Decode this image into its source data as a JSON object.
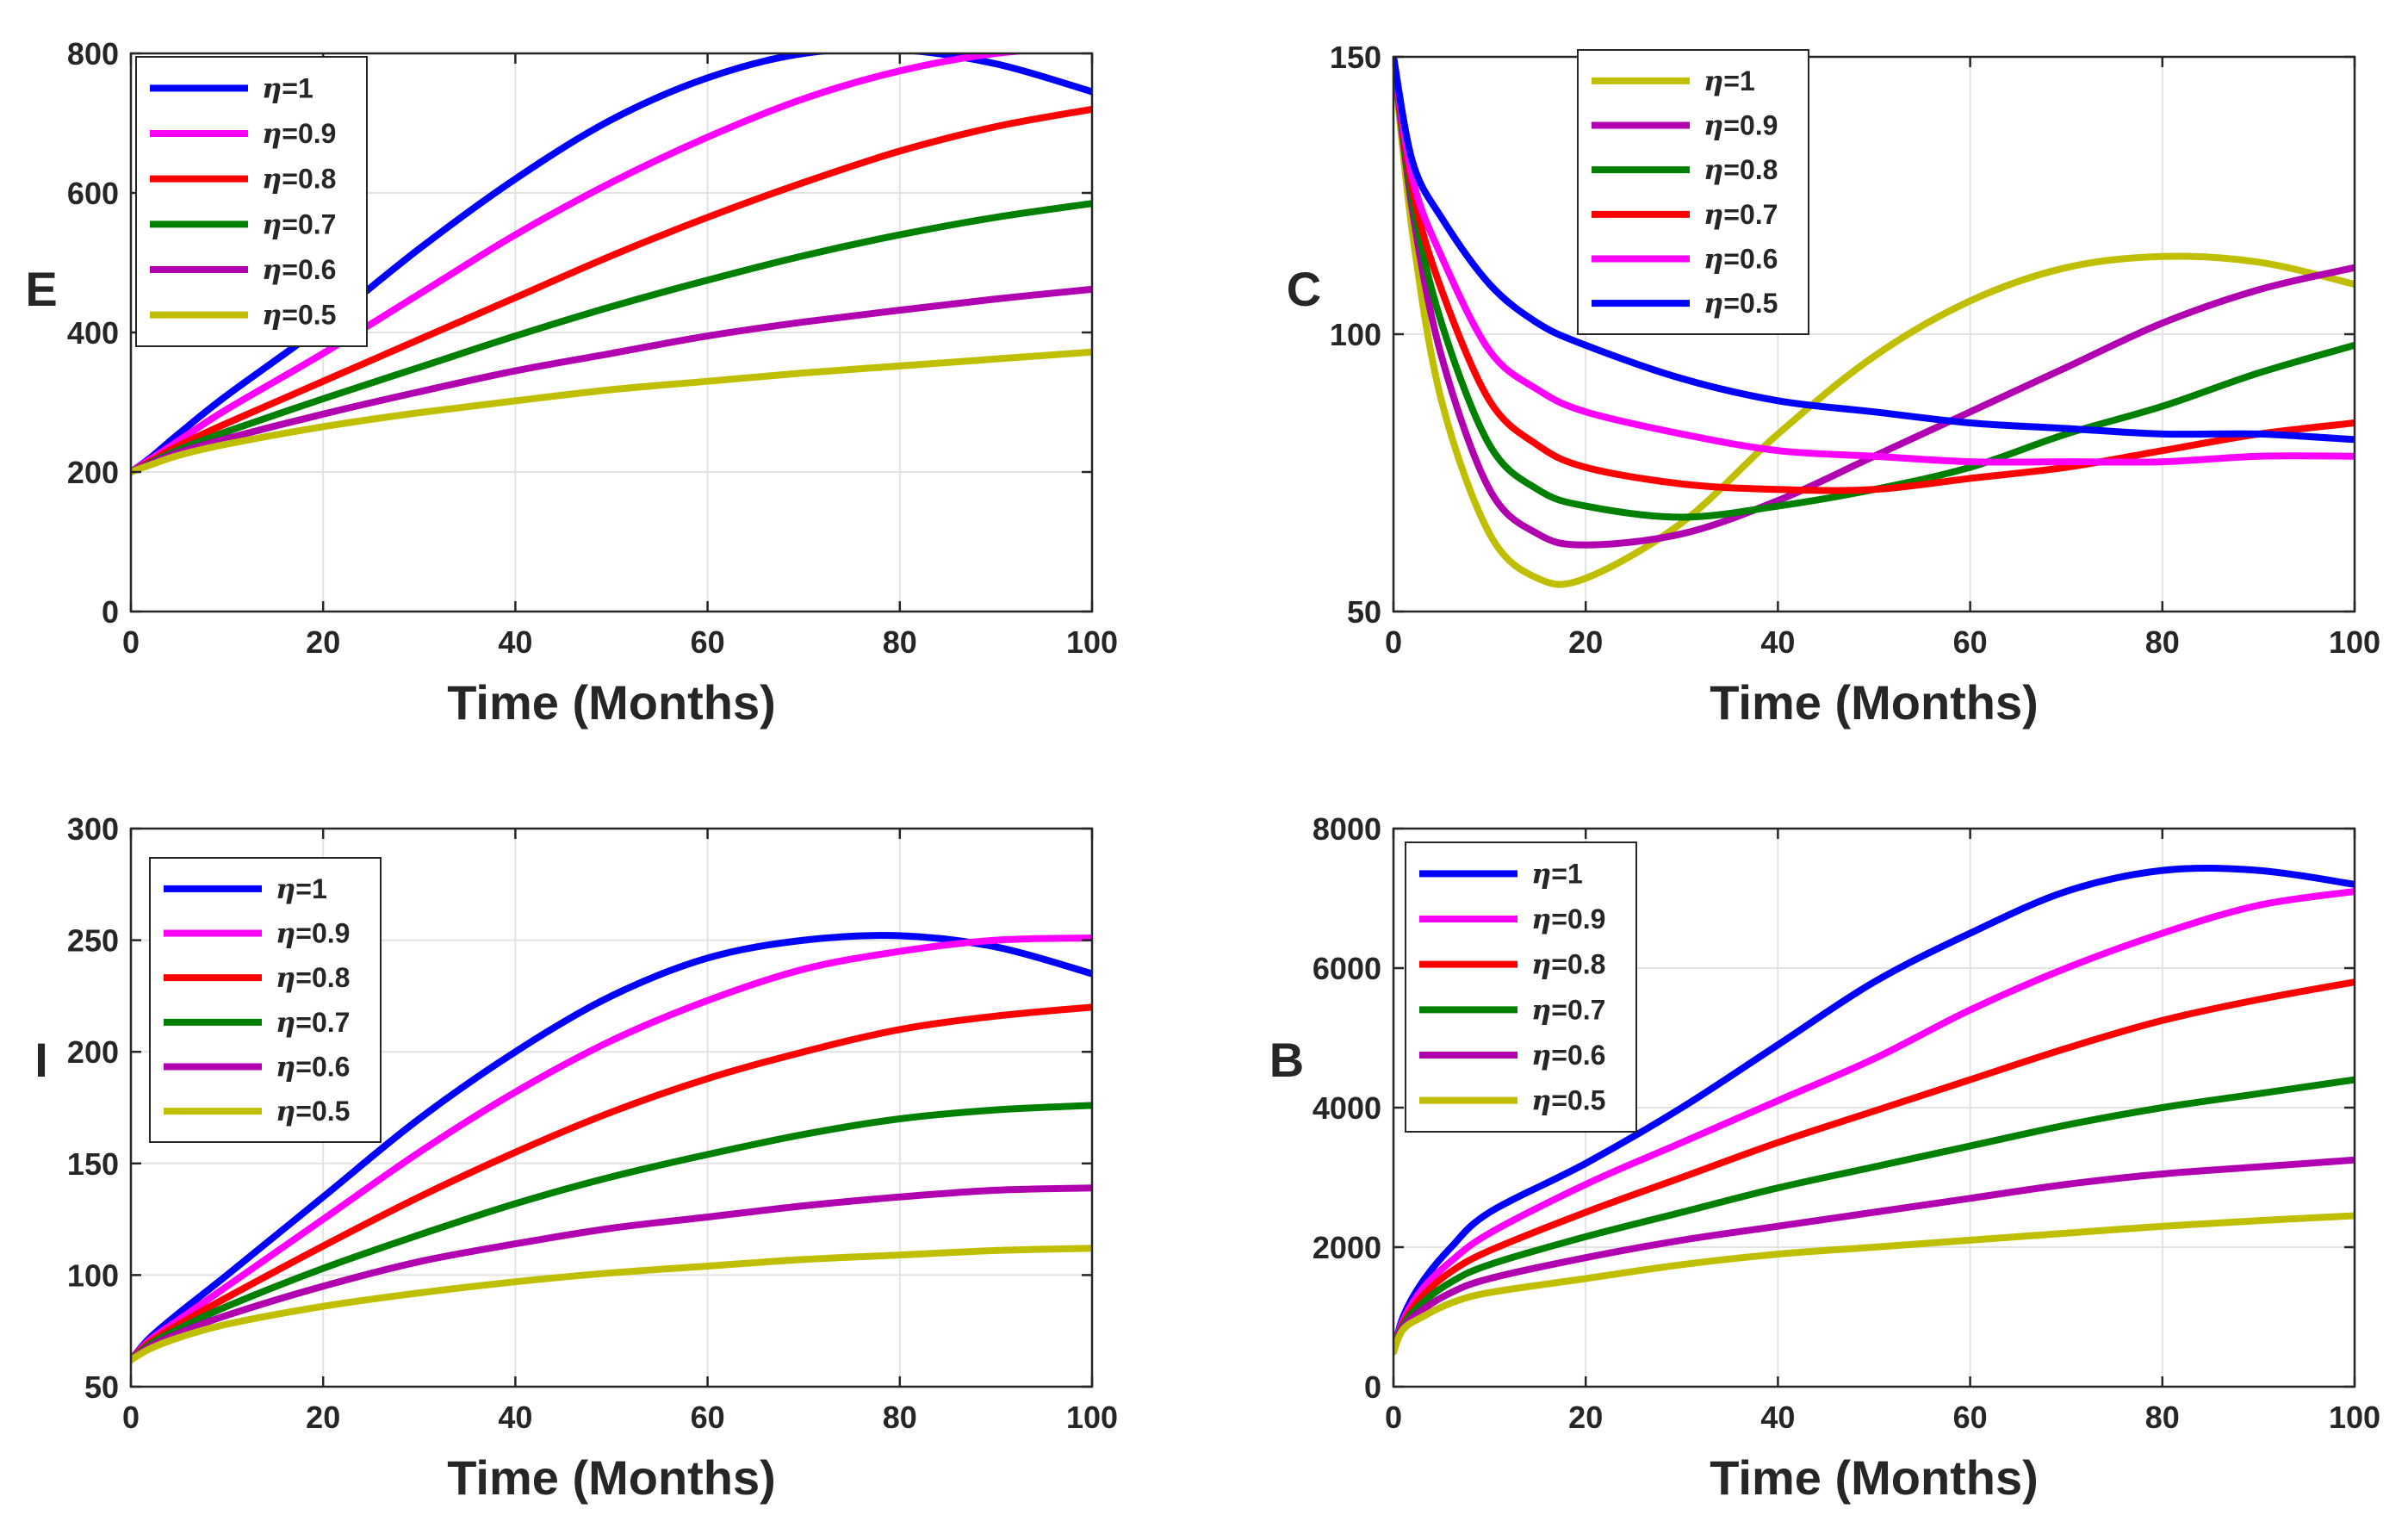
{
  "chart_data": [
    {
      "type": "line",
      "ylabel": "E",
      "xlabel": "Time (Months)",
      "xlim": [
        0,
        100
      ],
      "ylim": [
        0,
        800
      ],
      "xticks": [
        "0",
        "20",
        "40",
        "60",
        "80",
        "100"
      ],
      "yticks": [
        "0",
        "200",
        "400",
        "600",
        "800"
      ],
      "grid": true,
      "legend_position": "top-left",
      "x": [
        0,
        2,
        5,
        10,
        20,
        30,
        40,
        50,
        60,
        70,
        80,
        90,
        100
      ],
      "series": [
        {
          "name": "η=1",
          "eta": "1",
          "color": "#0000ff",
          "values": [
            200,
            220,
            255,
            310,
            410,
            520,
            620,
            705,
            765,
            800,
            805,
            785,
            745
          ]
        },
        {
          "name": "η=0.9",
          "eta": "0.9",
          "color": "#ff00ff",
          "values": [
            200,
            218,
            245,
            290,
            370,
            455,
            540,
            615,
            680,
            735,
            775,
            800,
            810
          ]
        },
        {
          "name": "η=0.8",
          "eta": "0.8",
          "color": "#ff0000",
          "values": [
            200,
            215,
            238,
            270,
            330,
            390,
            450,
            510,
            565,
            615,
            660,
            695,
            720
          ]
        },
        {
          "name": "η=0.7",
          "eta": "0.7",
          "color": "#008000",
          "values": [
            200,
            213,
            232,
            258,
            305,
            350,
            395,
            437,
            475,
            510,
            540,
            565,
            585
          ]
        },
        {
          "name": "η=0.6",
          "eta": "0.6",
          "color": "#b000b0",
          "values": [
            200,
            212,
            228,
            248,
            283,
            315,
            345,
            370,
            395,
            415,
            432,
            448,
            462
          ]
        },
        {
          "name": "η=0.5",
          "eta": "0.5",
          "color": "#bfbf00",
          "values": [
            200,
            210,
            224,
            240,
            265,
            285,
            302,
            318,
            330,
            342,
            352,
            362,
            372
          ]
        }
      ]
    },
    {
      "type": "line",
      "ylabel": "C",
      "xlabel": "Time (Months)",
      "xlim": [
        0,
        100
      ],
      "ylim": [
        50,
        150
      ],
      "xticks": [
        "0",
        "20",
        "40",
        "60",
        "80",
        "100"
      ],
      "yticks": [
        "50",
        "100",
        "150"
      ],
      "grid": true,
      "legend_position": "top-center",
      "x": [
        0,
        2,
        5,
        10,
        15,
        20,
        30,
        40,
        50,
        60,
        70,
        80,
        90,
        100
      ],
      "series": [
        {
          "name": "η=1",
          "eta": "1",
          "color": "#bfbf00",
          "values": [
            150,
            118,
            88,
            64,
            56,
            56,
            66,
            82,
            96,
            106,
            112,
            114,
            113,
            109
          ]
        },
        {
          "name": "η=0.9",
          "eta": "0.9",
          "color": "#b000b0",
          "values": [
            150,
            122,
            96,
            72,
            64,
            62,
            64,
            70,
            78,
            86,
            94,
            102,
            108,
            112
          ]
        },
        {
          "name": "η=0.8",
          "eta": "0.8",
          "color": "#008000",
          "values": [
            150,
            124,
            102,
            80,
            72,
            69,
            67,
            69,
            72,
            76,
            82,
            87,
            93,
            98
          ]
        },
        {
          "name": "η=0.7",
          "eta": "0.7",
          "color": "#ff0000",
          "values": [
            150,
            126,
            108,
            88,
            80,
            76,
            73,
            72,
            72,
            74,
            76,
            79,
            82,
            84
          ]
        },
        {
          "name": "η=0.6",
          "eta": "0.6",
          "color": "#ff00ff",
          "values": [
            150,
            128,
            114,
            97,
            90,
            86,
            82,
            79,
            78,
            77,
            77,
            77,
            78,
            78
          ]
        },
        {
          "name": "η=0.5",
          "eta": "0.5",
          "color": "#0000ff",
          "values": [
            150,
            131,
            121,
            109,
            102,
            98,
            92,
            88,
            86,
            84,
            83,
            82,
            82,
            81
          ]
        }
      ]
    },
    {
      "type": "line",
      "ylabel": "I",
      "xlabel": "Time (Months)",
      "xlim": [
        0,
        100
      ],
      "ylim": [
        50,
        300
      ],
      "xticks": [
        "0",
        "20",
        "40",
        "60",
        "80",
        "100"
      ],
      "yticks": [
        "50",
        "100",
        "150",
        "200",
        "250",
        "300"
      ],
      "grid": true,
      "legend_position": "top-left",
      "x": [
        0,
        2,
        5,
        10,
        20,
        30,
        40,
        50,
        60,
        70,
        80,
        90,
        100
      ],
      "series": [
        {
          "name": "η=1",
          "eta": "1",
          "color": "#0000ff",
          "values": [
            62,
            72,
            83,
            100,
            135,
            170,
            200,
            225,
            242,
            250,
            252,
            247,
            235
          ]
        },
        {
          "name": "η=0.9",
          "eta": "0.9",
          "color": "#ff00ff",
          "values": [
            62,
            71,
            80,
            95,
            125,
            155,
            182,
            205,
            223,
            237,
            245,
            250,
            251
          ]
        },
        {
          "name": "η=0.8",
          "eta": "0.8",
          "color": "#ff0000",
          "values": [
            62,
            70,
            78,
            90,
            113,
            135,
            155,
            173,
            188,
            200,
            210,
            216,
            220
          ]
        },
        {
          "name": "η=0.7",
          "eta": "0.7",
          "color": "#008000",
          "values": [
            62,
            69,
            76,
            86,
            103,
            118,
            132,
            144,
            154,
            163,
            170,
            174,
            176
          ]
        },
        {
          "name": "η=0.6",
          "eta": "0.6",
          "color": "#b000b0",
          "values": [
            62,
            68,
            74,
            82,
            95,
            106,
            114,
            121,
            126,
            131,
            135,
            138,
            139
          ]
        },
        {
          "name": "η=0.5",
          "eta": "0.5",
          "color": "#bfbf00",
          "values": [
            62,
            67,
            72,
            78,
            86,
            92,
            97,
            101,
            104,
            107,
            109,
            111,
            112
          ]
        }
      ]
    },
    {
      "type": "line",
      "ylabel": "B",
      "xlabel": "Time (Months)",
      "xlim": [
        0,
        100
      ],
      "ylim": [
        0,
        8000
      ],
      "xticks": [
        "0",
        "20",
        "40",
        "60",
        "80",
        "100"
      ],
      "yticks": [
        "0",
        "2000",
        "4000",
        "6000",
        "8000"
      ],
      "grid": true,
      "legend_position": "top-left",
      "x": [
        0,
        1,
        3,
        6,
        10,
        20,
        30,
        40,
        50,
        60,
        70,
        80,
        90,
        100
      ],
      "series": [
        {
          "name": "η=1",
          "eta": "1",
          "color": "#0000ff",
          "values": [
            500,
            1000,
            1500,
            2000,
            2500,
            3200,
            4000,
            4900,
            5800,
            6500,
            7100,
            7400,
            7400,
            7200
          ]
        },
        {
          "name": "η=0.9",
          "eta": "0.9",
          "color": "#ff00ff",
          "values": [
            500,
            950,
            1400,
            1800,
            2200,
            2900,
            3500,
            4100,
            4700,
            5400,
            6000,
            6500,
            6900,
            7100
          ]
        },
        {
          "name": "η=0.8",
          "eta": "0.8",
          "color": "#ff0000",
          "values": [
            500,
            900,
            1300,
            1650,
            1950,
            2500,
            3000,
            3500,
            3950,
            4400,
            4850,
            5250,
            5550,
            5800
          ]
        },
        {
          "name": "η=0.7",
          "eta": "0.7",
          "color": "#008000",
          "values": [
            500,
            880,
            1200,
            1500,
            1750,
            2150,
            2500,
            2850,
            3150,
            3450,
            3750,
            4000,
            4200,
            4400
          ]
        },
        {
          "name": "η=0.6",
          "eta": "0.6",
          "color": "#b000b0",
          "values": [
            500,
            850,
            1100,
            1350,
            1550,
            1850,
            2100,
            2300,
            2500,
            2700,
            2900,
            3050,
            3150,
            3250
          ]
        },
        {
          "name": "η=0.5",
          "eta": "0.5",
          "color": "#bfbf00",
          "values": [
            500,
            820,
            1000,
            1200,
            1350,
            1550,
            1750,
            1900,
            2000,
            2100,
            2200,
            2300,
            2380,
            2450
          ]
        }
      ]
    }
  ]
}
